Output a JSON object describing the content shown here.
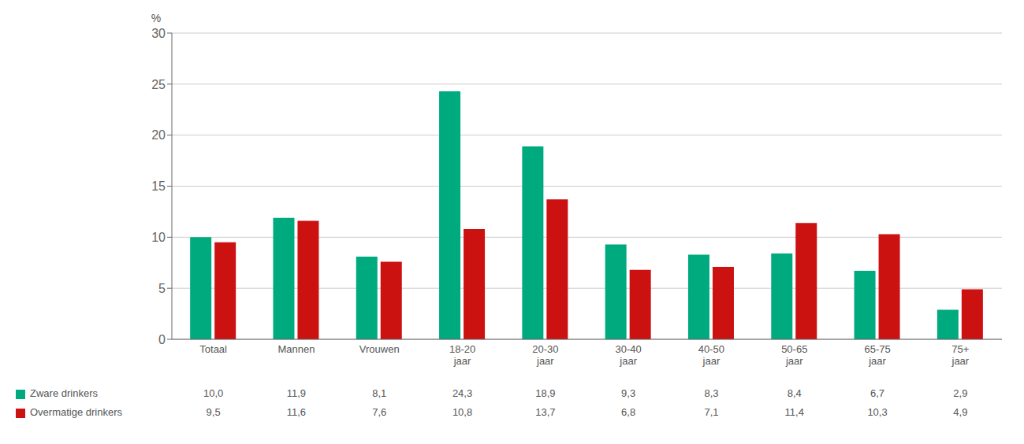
{
  "chart_data": {
    "type": "bar",
    "y_label": "%",
    "categories": [
      "Totaal",
      "Mannen",
      "Vrouwen",
      "18-20\njaar",
      "20-30\njaar",
      "30-40\njaar",
      "40-50\njaar",
      "50-65\njaar",
      "65-75\njaar",
      "75+\njaar"
    ],
    "series": [
      {
        "name": "Zware drinkers",
        "color": "#00AA7F",
        "values": [
          10.0,
          11.9,
          8.1,
          24.3,
          18.9,
          9.3,
          8.3,
          8.4,
          6.7,
          2.9
        ],
        "value_labels": [
          "10,0",
          "11,9",
          "8,1",
          "24,3",
          "18,9",
          "9,3",
          "8,3",
          "8,4",
          "6,7",
          "2,9"
        ]
      },
      {
        "name": "Overmatige drinkers",
        "color": "#CC1111",
        "values": [
          9.5,
          11.6,
          7.6,
          10.8,
          13.7,
          6.8,
          7.1,
          11.4,
          10.3,
          4.9
        ],
        "value_labels": [
          "9,5",
          "11,6",
          "7,6",
          "10,8",
          "13,7",
          "6,8",
          "7,1",
          "11,4",
          "10,3",
          "4,9"
        ]
      }
    ],
    "ylim": [
      0,
      30
    ],
    "yticks": [
      0,
      5,
      10,
      15,
      20,
      25,
      30
    ],
    "grid": true,
    "legend": "bottom",
    "data_labels": true
  }
}
